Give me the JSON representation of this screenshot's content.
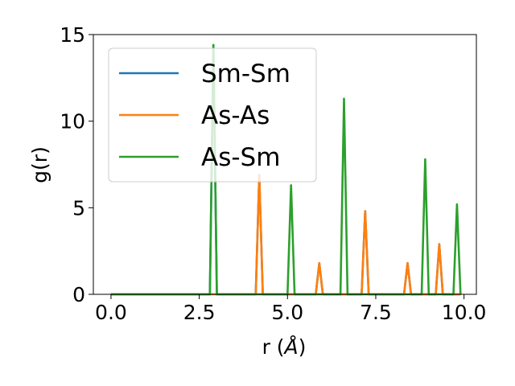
{
  "chart_data": {
    "type": "line",
    "title": "",
    "xlabel": "r (Å)",
    "xlabel_prefix": "r (",
    "xlabel_unit": "Å",
    "xlabel_suffix": ")",
    "ylabel": "g(r)",
    "xlim": [
      -0.5,
      10.35
    ],
    "ylim": [
      0,
      15
    ],
    "xticks": [
      0.0,
      2.5,
      5.0,
      7.5,
      10.0
    ],
    "xtick_labels": [
      "0.0",
      "2.5",
      "5.0",
      "7.5",
      "10.0"
    ],
    "yticks": [
      0,
      5,
      10,
      15
    ],
    "ytick_labels": [
      "0",
      "5",
      "10",
      "15"
    ],
    "grid": false,
    "legend_position": "upper-left",
    "series": [
      {
        "name": "Sm-Sm",
        "color": "#1f77b4",
        "x": [
          0.0,
          2.8,
          2.9,
          3.0,
          4.1,
          4.2,
          4.3,
          5.8,
          5.9,
          6.0,
          7.1,
          7.2,
          7.3,
          8.3,
          8.4,
          8.5,
          9.2,
          9.3,
          9.4,
          9.9
        ],
        "y": [
          0,
          0,
          14.4,
          0,
          0,
          6.9,
          0,
          0,
          1.8,
          0,
          0,
          4.8,
          0,
          0,
          1.8,
          0,
          0,
          2.9,
          0,
          0
        ]
      },
      {
        "name": "As-As",
        "color": "#ff7f0e",
        "x": [
          0.0,
          4.1,
          4.2,
          4.3,
          5.8,
          5.9,
          6.0,
          7.1,
          7.2,
          7.3,
          8.3,
          8.4,
          8.5,
          9.2,
          9.3,
          9.4,
          9.9
        ],
        "y": [
          0,
          0,
          6.9,
          0,
          0,
          1.8,
          0,
          0,
          4.8,
          0,
          0,
          1.8,
          0,
          0,
          2.9,
          0,
          0
        ]
      },
      {
        "name": "As-Sm",
        "color": "#2ca02c",
        "x": [
          0.0,
          2.8,
          2.9,
          3.0,
          5.0,
          5.1,
          5.2,
          6.5,
          6.6,
          6.7,
          8.8,
          8.9,
          9.0,
          9.7,
          9.8,
          9.9
        ],
        "y": [
          0,
          0,
          14.4,
          0,
          0,
          6.3,
          0,
          0,
          11.3,
          0,
          0,
          7.8,
          0,
          0,
          5.2,
          0
        ]
      }
    ]
  }
}
